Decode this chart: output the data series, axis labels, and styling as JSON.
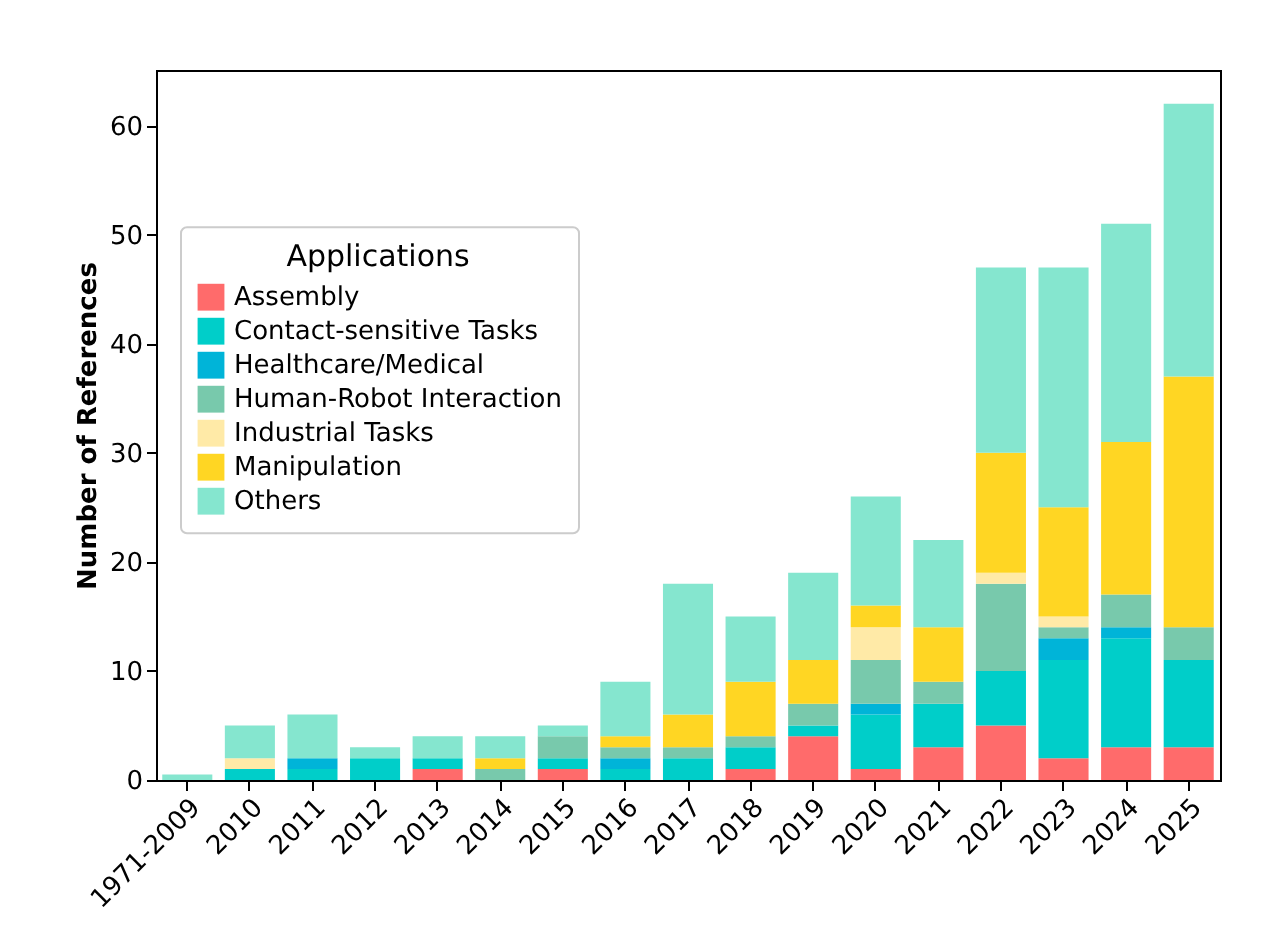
{
  "chart_data": {
    "type": "bar",
    "stacked": true,
    "ylabel": "Number of References",
    "legend_title": "Applications",
    "legend": "left",
    "categories": [
      "1971-2009",
      "2010",
      "2011",
      "2012",
      "2013",
      "2014",
      "2015",
      "2016",
      "2017",
      "2018",
      "2019",
      "2020",
      "2021",
      "2022",
      "2023",
      "2024",
      "2025"
    ],
    "series": [
      {
        "name": "Assembly",
        "color": "#ff6b6b",
        "values": [
          null,
          null,
          null,
          null,
          1,
          null,
          1,
          null,
          null,
          1,
          4,
          1,
          3,
          5,
          2,
          3,
          3
        ]
      },
      {
        "name": "Contact-sensitive Tasks",
        "color": "#00cec9",
        "values": [
          null,
          1,
          1,
          2,
          1,
          null,
          1,
          1,
          2,
          2,
          1,
          5,
          4,
          5,
          9,
          10,
          8
        ]
      },
      {
        "name": "Healthcare/Medical",
        "color": "#00b4d8",
        "values": [
          null,
          null,
          1,
          null,
          null,
          null,
          null,
          1,
          null,
          null,
          null,
          1,
          null,
          null,
          2,
          1,
          null
        ]
      },
      {
        "name": "Human-Robot Interaction",
        "color": "#78c9ac",
        "values": [
          null,
          null,
          null,
          null,
          null,
          1,
          2,
          1,
          1,
          1,
          2,
          4,
          2,
          8,
          1,
          3,
          3
        ]
      },
      {
        "name": "Industrial Tasks",
        "color": "#ffeaa7",
        "values": [
          null,
          1,
          null,
          null,
          null,
          null,
          null,
          null,
          null,
          null,
          null,
          3,
          null,
          1,
          1,
          null,
          null
        ]
      },
      {
        "name": "Manipulation",
        "color": "#ffd623",
        "values": [
          null,
          null,
          null,
          null,
          null,
          1,
          null,
          1,
          3,
          5,
          4,
          2,
          5,
          11,
          10,
          14,
          23
        ]
      },
      {
        "name": "Others",
        "color": "#85e6cf",
        "values": [
          0.5,
          3,
          4,
          1,
          2,
          2,
          1,
          5,
          12,
          6,
          8,
          10,
          8,
          17,
          22,
          20,
          25
        ]
      }
    ],
    "ylim": [
      0,
      65.1
    ],
    "yticks": [
      0,
      10,
      20,
      30,
      40,
      50,
      60
    ],
    "grid": false
  }
}
